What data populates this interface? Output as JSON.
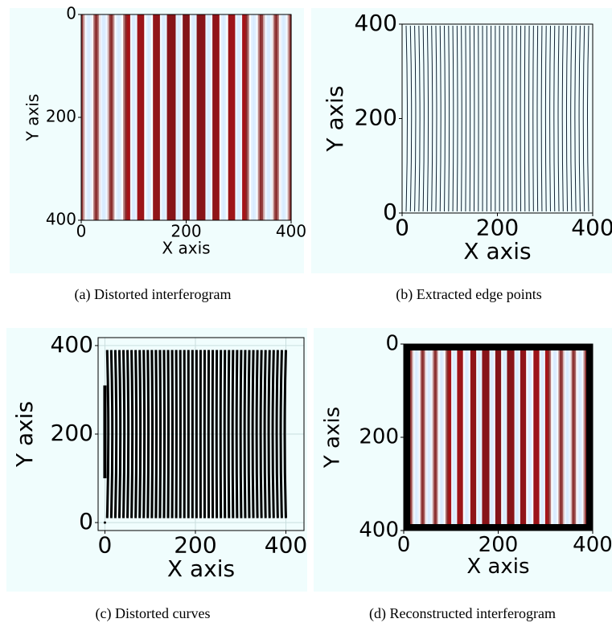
{
  "chart_data": [
    {
      "type": "image",
      "caption": "(a) Distorted interferogram",
      "xlabel": "X axis",
      "ylabel": "Y axis",
      "xlim": [
        0,
        400
      ],
      "ylim": [
        400,
        0
      ],
      "xticks": [
        0,
        200,
        400
      ],
      "yticks": [
        0,
        200,
        400
      ]
    },
    {
      "type": "edges",
      "caption": "(b) Extracted edge points",
      "xlabel": "X axis",
      "ylabel": "Y axis",
      "xlim": [
        0,
        400
      ],
      "ylim": [
        0,
        400
      ],
      "xticks": [
        0,
        200,
        400
      ],
      "yticks": [
        0,
        200,
        400
      ]
    },
    {
      "type": "curves",
      "caption": "(c) Distorted curves",
      "xlabel": "X axis",
      "ylabel": "Y axis",
      "xlim": [
        -15,
        440
      ],
      "ylim": [
        -18,
        418
      ],
      "xticks": [
        0,
        200,
        400
      ],
      "yticks": [
        0,
        200,
        400
      ],
      "grid": true
    },
    {
      "type": "image",
      "caption": "(d) Reconstructed interferogram",
      "xlabel": "X axis",
      "ylabel": "Y axis",
      "xlim": [
        0,
        400
      ],
      "ylim": [
        400,
        0
      ],
      "xticks": [
        0,
        200,
        400
      ],
      "yticks": [
        0,
        200,
        400
      ],
      "frame": true
    }
  ]
}
